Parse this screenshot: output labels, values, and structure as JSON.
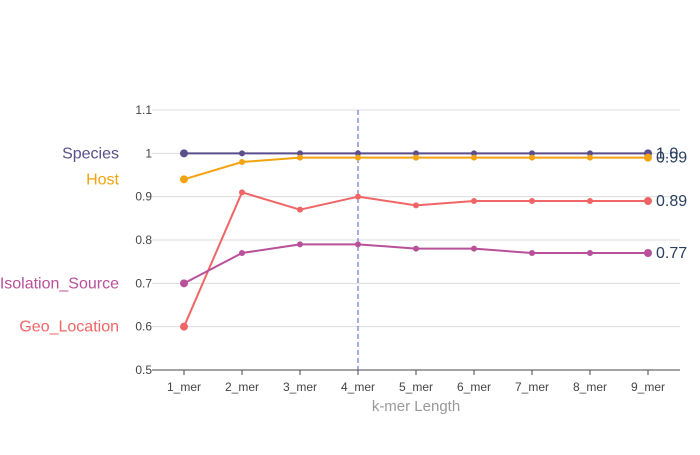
{
  "chart_data": {
    "type": "line",
    "xlabel": "k-mer Length",
    "ylabel": "",
    "categories": [
      "1_mer",
      "2_mer",
      "3_mer",
      "4_mer",
      "5_mer",
      "6_mer",
      "7_mer",
      "8_mer",
      "9_mer"
    ],
    "ylim": [
      0.5,
      1.1
    ],
    "yticks": [
      "0.5",
      "0.6",
      "0.7",
      "0.8",
      "0.9",
      "1",
      "1.1"
    ],
    "grid": true,
    "vertical_marker_category": "4_mer",
    "series": [
      {
        "name": "Species",
        "color": "#5a4e8c",
        "values": [
          1.0,
          1.0,
          1.0,
          1.0,
          1.0,
          1.0,
          1.0,
          1.0,
          1.0
        ],
        "end_label": "1.0"
      },
      {
        "name": "Host",
        "color": "#f2a30f",
        "values": [
          0.94,
          0.98,
          0.99,
          0.99,
          0.99,
          0.99,
          0.99,
          0.99,
          0.99
        ],
        "end_label": "0.99"
      },
      {
        "name": "Geo_Location",
        "color": "#f06565",
        "values": [
          0.6,
          0.91,
          0.87,
          0.9,
          0.88,
          0.89,
          0.89,
          0.89,
          0.89
        ],
        "end_label": "0.89"
      },
      {
        "name": "Isolation_Source",
        "color": "#b8509a",
        "values": [
          0.7,
          0.77,
          0.79,
          0.79,
          0.78,
          0.78,
          0.77,
          0.77,
          0.77
        ],
        "end_label": "0.77"
      }
    ]
  }
}
